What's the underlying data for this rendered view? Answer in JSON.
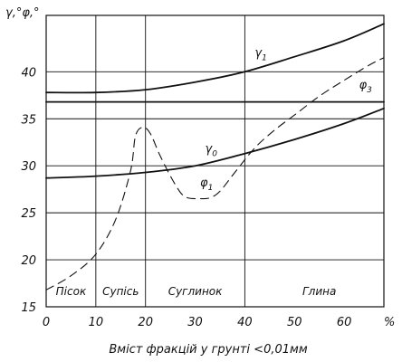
{
  "chart_data": {
    "type": "line",
    "title": "",
    "ylabel": "γ,°φ,°",
    "xlabel": "Вміст фракцій у грунті <0,01мм",
    "x_unit": "%",
    "xlim": [
      0,
      68
    ],
    "ylim": [
      15,
      46
    ],
    "x_ticks": [
      0,
      10,
      20,
      30,
      40,
      50,
      60
    ],
    "y_ticks": [
      15,
      20,
      25,
      30,
      35,
      40
    ],
    "grid": "vertical lines at soil-zone boundaries; horizontal lines at each y tick",
    "zone_boundaries": [
      10,
      20,
      40
    ],
    "zones": [
      {
        "label": "Пісок",
        "x": 5
      },
      {
        "label": "Супісь",
        "x": 15
      },
      {
        "label": "Суглинок",
        "x": 30
      },
      {
        "label": "Глина",
        "x": 55
      }
    ],
    "series": [
      {
        "name": "γ1",
        "main": "γ",
        "sub": "1",
        "style": "solid",
        "label_at": [
          42,
          41.6
        ],
        "points": [
          [
            0,
            37.8
          ],
          [
            10,
            37.8
          ],
          [
            20,
            38.1
          ],
          [
            30,
            38.9
          ],
          [
            40,
            40.0
          ],
          [
            50,
            41.6
          ],
          [
            60,
            43.3
          ],
          [
            68,
            45.1
          ]
        ]
      },
      {
        "name": "φ3",
        "main": "φ",
        "sub": "3",
        "style": "solid",
        "label_at": [
          63,
          38.2
        ],
        "points": [
          [
            0,
            36.8
          ],
          [
            68,
            36.8
          ]
        ]
      },
      {
        "name": "γ0",
        "main": "γ",
        "sub": "0",
        "style": "solid",
        "label_at": [
          32,
          31.4
        ],
        "points": [
          [
            0,
            28.7
          ],
          [
            10,
            28.9
          ],
          [
            20,
            29.3
          ],
          [
            30,
            30.0
          ],
          [
            40,
            31.3
          ],
          [
            50,
            32.8
          ],
          [
            60,
            34.5
          ],
          [
            68,
            36.1
          ]
        ]
      },
      {
        "name": "φ1",
        "main": "φ",
        "sub": "1",
        "style": "dashed",
        "label_at": [
          31,
          27.8
        ],
        "points": [
          [
            0,
            16.8
          ],
          [
            5,
            18.3
          ],
          [
            10,
            20.6
          ],
          [
            14,
            24.3
          ],
          [
            17,
            29.5
          ],
          [
            18,
            33.2
          ],
          [
            19.5,
            34.1
          ],
          [
            21,
            33.4
          ],
          [
            23,
            31.0
          ],
          [
            26,
            28.0
          ],
          [
            28,
            26.7
          ],
          [
            31,
            26.5
          ],
          [
            33,
            26.6
          ],
          [
            35,
            27.3
          ],
          [
            38,
            29.3
          ],
          [
            42,
            31.9
          ],
          [
            46,
            33.8
          ],
          [
            50,
            35.4
          ],
          [
            55,
            37.4
          ],
          [
            60,
            39.1
          ],
          [
            65,
            40.7
          ],
          [
            68,
            41.5
          ]
        ]
      }
    ]
  }
}
